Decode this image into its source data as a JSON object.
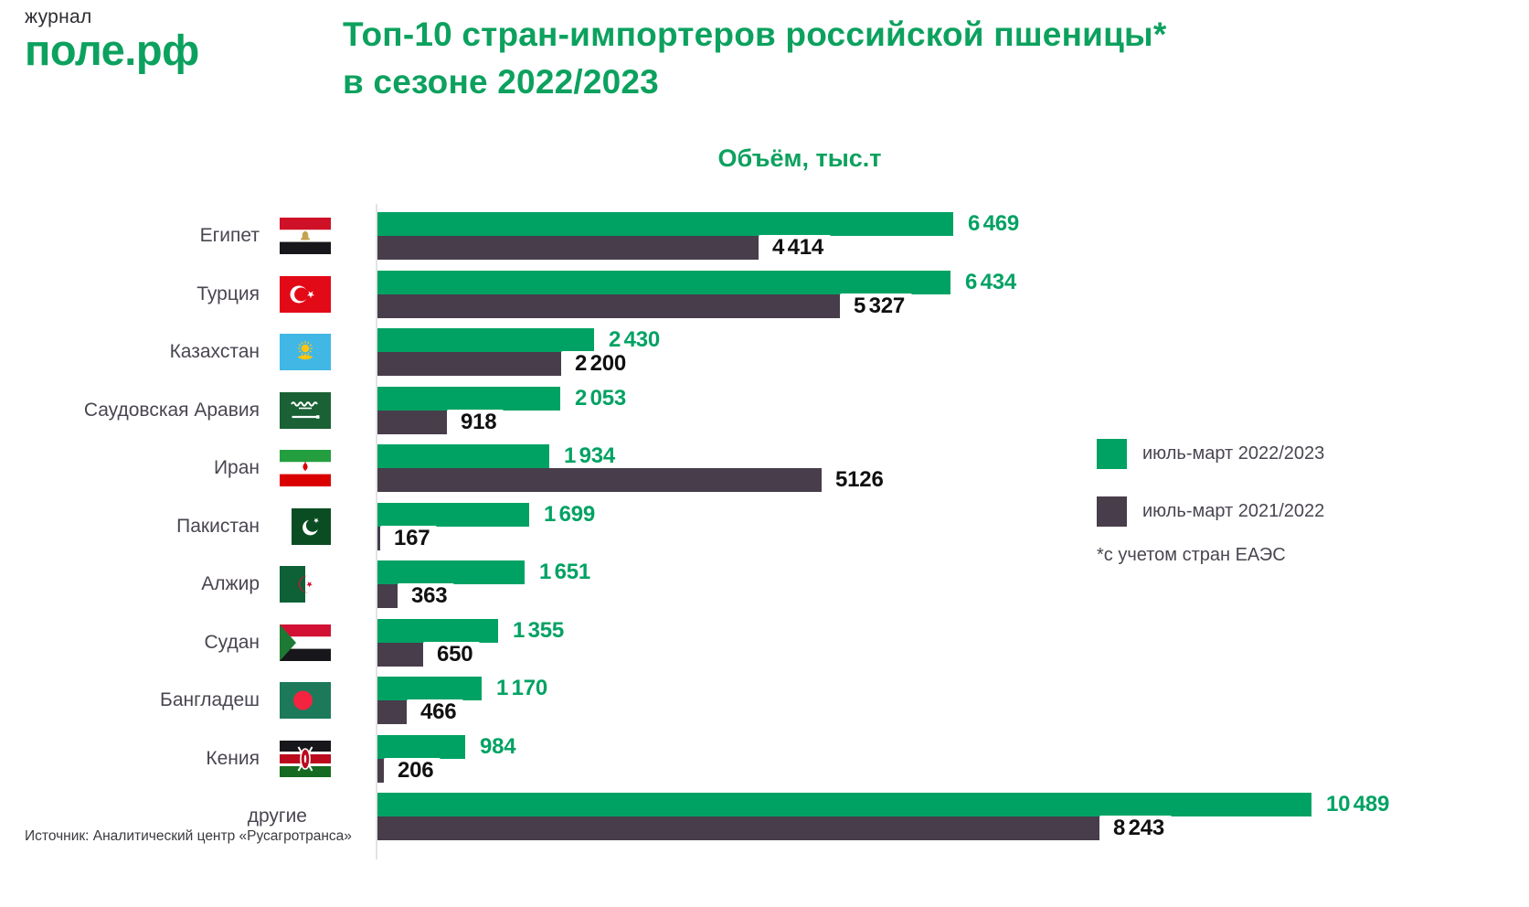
{
  "logo": {
    "line1": "журнал",
    "line2": "поле.рф"
  },
  "title": {
    "line1": "Топ-10 стран-импортеров российской пшеницы*",
    "line2": "в сезоне 2022/2023"
  },
  "subtitle": "Объём, тыс.т",
  "footnote": "*с учетом стран ЕАЭС",
  "source": "Источник: Аналитический центр «Русагротранса»",
  "colors": {
    "green_brand": "#0ca15e",
    "green_bar": "#00a263",
    "dark_bar": "#473d4b",
    "axis_line": "#e3e3e6"
  },
  "legend": [
    {
      "label": "июль-март 2022/2023",
      "color": "#00a263"
    },
    {
      "label": "июль-март 2021/2022",
      "color": "#473d4b"
    }
  ],
  "chart_data": {
    "type": "bar",
    "orientation": "horizontal",
    "title": "Топ-10 стран-импортеров российской пшеницы* в сезоне 2022/2023",
    "value_axis_label": "Объём, тыс.т",
    "unit": "тыс. т",
    "max_value": 10489,
    "grid": false,
    "legend_position": "right",
    "categories": [
      "Египет",
      "Турция",
      "Казахстан",
      "Саудовская Аравия",
      "Иран",
      "Пакистан",
      "Алжир",
      "Судан",
      "Бангладеш",
      "Кения",
      "другие"
    ],
    "flags": [
      "egypt",
      "turkey",
      "kazakhstan",
      "saudi-arabia",
      "iran",
      "pakistan",
      "algeria",
      "sudan",
      "bangladesh",
      "kenya",
      null
    ],
    "series": [
      {
        "name": "июль-март 2022/2023",
        "color": "#00a263",
        "values": [
          6469,
          6434,
          2430,
          2053,
          1934,
          1699,
          1651,
          1355,
          1170,
          984,
          10489
        ],
        "display_labels": [
          "6 469",
          "6 434",
          "2 430",
          "2 053",
          "1 934",
          "1 699",
          "1 651",
          "1 355",
          "1 170",
          "984",
          "10 489"
        ]
      },
      {
        "name": "июль-март 2021/2022",
        "color": "#473d4b",
        "values": [
          4414,
          5327,
          2200,
          918,
          5126,
          167,
          363,
          650,
          466,
          206,
          8243
        ],
        "display_labels": [
          "4 414",
          "5 327",
          "2 200",
          "918",
          "5126",
          "167",
          "363",
          "650",
          "466",
          "206",
          "8 243"
        ]
      }
    ]
  }
}
